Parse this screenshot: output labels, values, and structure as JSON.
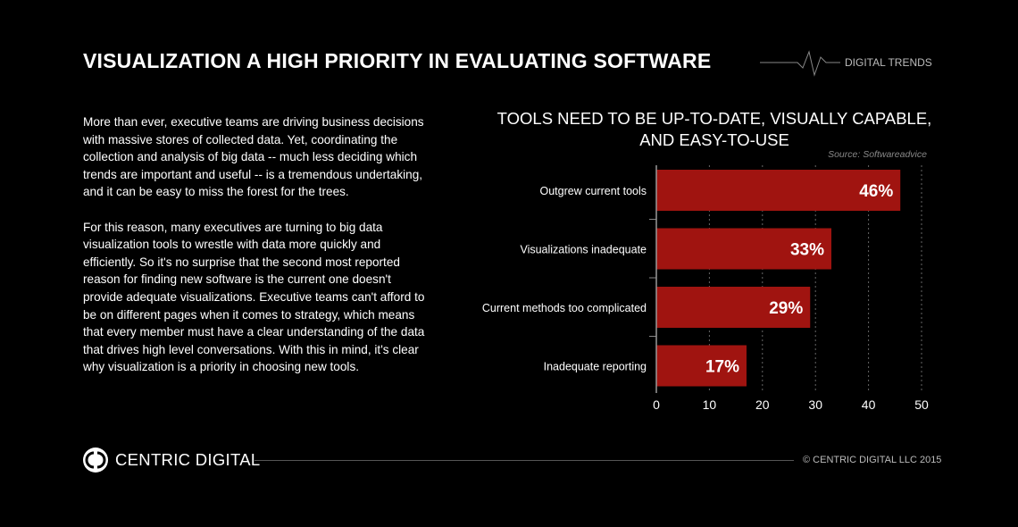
{
  "header": {
    "title": "VISUALIZATION A HIGH PRIORITY IN EVALUATING SOFTWARE",
    "brand": "DIGITAL TRENDS"
  },
  "body": {
    "paragraphs": [
      "More than ever, executive teams are driving business decisions with massive stores of collected data. Yet, coordinating the collection and analysis of big data -- much less deciding which trends are important and useful -- is a tremendous undertaking, and it can be easy to miss the forest for the trees.",
      "For this reason, many executives are turning to big data visualization tools to wrestle with data more quickly and efficiently. So it's no surprise that the second most reported reason for finding new software is the current one doesn't provide adequate visualizations. Executive teams can't afford to be on different pages when it comes to strategy, which means that every member must have a clear understanding of the data that drives high level conversations. With this in mind, it's clear why visualization is a priority in choosing new tools."
    ]
  },
  "chart_data": {
    "type": "bar",
    "orientation": "horizontal",
    "title": "TOOLS NEED TO BE UP-TO-DATE, VISUALLY CAPABLE, AND EASY-TO-USE",
    "source": "Source: Softwareadvice",
    "categories": [
      "Outgrew current tools",
      "Visualizations inadequate",
      "Current methods too complicated",
      "Inadequate reporting"
    ],
    "values": [
      46,
      33,
      29,
      17
    ],
    "data_labels": [
      "46%",
      "33%",
      "29%",
      "17%"
    ],
    "xlim": [
      0,
      50
    ],
    "xticks": [
      "0",
      "10",
      "20",
      "30",
      "40",
      "50"
    ],
    "grid": "vertical dashed",
    "bar_color": "#a01410"
  },
  "footer": {
    "logo": "CENTRIC DIGITAL",
    "copyright": "© CENTRIC DIGITAL LLC 2015"
  }
}
